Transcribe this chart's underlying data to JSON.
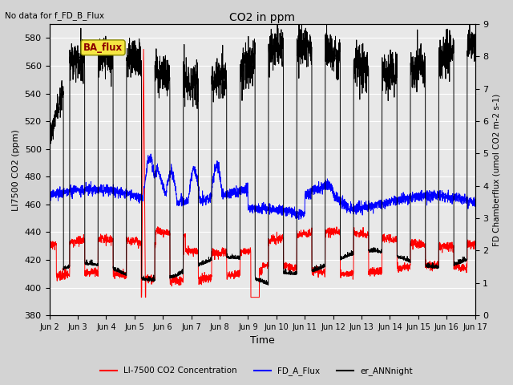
{
  "title": "CO2 in ppm",
  "top_left_text": "No data for f_FD_B_Flux",
  "legend_box_text": "BA_flux",
  "xlabel": "Time",
  "ylabel_left": "LI7500 CO2 (ppm)",
  "ylabel_right": "FD Chamberflux (umol CO2 m-2 s-1)",
  "ylim_left": [
    380,
    590
  ],
  "ylim_right": [
    0.0,
    9.0
  ],
  "yticks_left": [
    380,
    400,
    420,
    440,
    460,
    480,
    500,
    520,
    540,
    560,
    580
  ],
  "yticks_right": [
    0.0,
    1.0,
    2.0,
    3.0,
    4.0,
    5.0,
    6.0,
    7.0,
    8.0,
    9.0
  ],
  "xtick_labels": [
    "Jun 2",
    "Jun 3",
    "Jun 4",
    "Jun 5",
    "Jun 6",
    "Jun 7",
    "Jun 8",
    "Jun 9",
    "Jun 10",
    "Jun 11",
    "Jun 12",
    "Jun 13",
    "Jun 14",
    "Jun 15",
    "Jun 16",
    "Jun 17"
  ],
  "bg_color": "#d3d3d3",
  "plot_bg_color": "#e8e8e8",
  "line_red": "red",
  "line_blue": "blue",
  "line_black": "black",
  "legend_entries": [
    "LI-7500 CO2 Concentration",
    "FD_A_Flux",
    "er_ANNnight"
  ],
  "legend_colors": [
    "red",
    "blue",
    "black"
  ]
}
